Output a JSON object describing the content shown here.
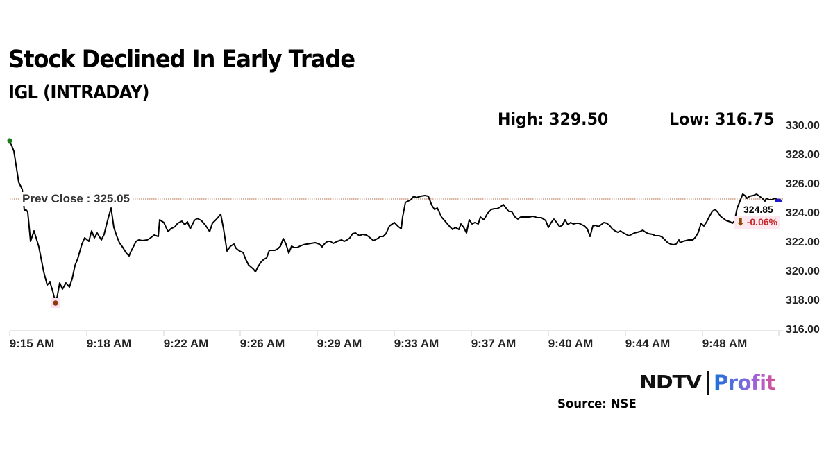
{
  "header": {
    "title": "Stock Declined In Early Trade",
    "subtitle": "IGL (INTRADAY)"
  },
  "stats": {
    "high_label": "High: 329.50",
    "low_label": "Low: 316.75"
  },
  "annotations": {
    "prev_close_label": "Prev Close : 325.05",
    "last_price": "324.85",
    "change_arrow": "⬇",
    "change_pct": "-0.06%"
  },
  "colors": {
    "line": "#000000",
    "prev_close_line": "#c0866a",
    "start_marker": "#1a7a1a",
    "low_marker": "#8b3a0f",
    "end_marker": "#1a1acc",
    "change_negative": "#c62828",
    "badge_bg": "#fde8f0"
  },
  "axes": {
    "y_ticks": [
      "330.00",
      "328.00",
      "326.00",
      "324.00",
      "322.00",
      "320.00",
      "318.00",
      "316.00"
    ],
    "x_ticks": [
      "9:15 AM",
      "9:18 AM",
      "9:22 AM",
      "9:26 AM",
      "9:29 AM",
      "9:33 AM",
      "9:37 AM",
      "9:40 AM",
      "9:44 AM",
      "9:48 AM"
    ]
  },
  "footer": {
    "brand_left": "NDTV",
    "brand_right": "Profit",
    "source": "Source: NSE"
  },
  "chart_data": {
    "type": "line",
    "title": "Stock Declined In Early Trade",
    "subtitle": "IGL (INTRADAY)",
    "xlabel": "",
    "ylabel": "",
    "ylim": [
      316,
      330
    ],
    "y_ticks": [
      316,
      318,
      320,
      322,
      324,
      326,
      328,
      330
    ],
    "x_ticks": [
      "9:15 AM",
      "9:18 AM",
      "9:22 AM",
      "9:26 AM",
      "9:29 AM",
      "9:33 AM",
      "9:37 AM",
      "9:40 AM",
      "9:44 AM",
      "9:48 AM"
    ],
    "grid": false,
    "legend": "none",
    "high": 329.5,
    "low": 316.75,
    "prev_close": 325.05,
    "last": 324.85,
    "change_pct": -0.06,
    "series": [
      {
        "name": "IGL",
        "x": [
          "9:15",
          "9:15",
          "9:16",
          "9:16",
          "9:16",
          "9:16",
          "9:16",
          "9:17",
          "9:17",
          "9:17",
          "9:17",
          "9:17",
          "9:18",
          "9:18",
          "9:18",
          "9:18",
          "9:19",
          "9:19",
          "9:19",
          "9:19",
          "9:19",
          "9:20",
          "9:20",
          "9:20",
          "9:21",
          "9:21",
          "9:22",
          "9:22",
          "9:22",
          "9:23",
          "9:23",
          "9:24",
          "9:24",
          "9:24",
          "9:25",
          "9:25",
          "9:25",
          "9:26",
          "9:26",
          "9:26",
          "9:27",
          "9:27",
          "9:28",
          "9:28",
          "9:28",
          "9:29",
          "9:29",
          "9:30",
          "9:30",
          "9:31",
          "9:31",
          "9:31",
          "9:32",
          "9:32",
          "9:33",
          "9:33",
          "9:33",
          "9:34",
          "9:34",
          "9:35",
          "9:35",
          "9:35",
          "9:36",
          "9:36",
          "9:37",
          "9:37",
          "9:38",
          "9:38",
          "9:38",
          "9:39",
          "9:39",
          "9:40",
          "9:40",
          "9:41",
          "9:41",
          "9:42",
          "9:42",
          "9:43",
          "9:43",
          "9:44",
          "9:44",
          "9:45",
          "9:45",
          "9:46",
          "9:46",
          "9:47",
          "9:47",
          "9:48",
          "9:48",
          "9:49",
          "9:49",
          "9:50",
          "9:50",
          "9:51",
          "9:51"
        ],
        "values": [
          329.0,
          327.5,
          324.5,
          324.3,
          322.0,
          321.9,
          322.8,
          318.8,
          319.1,
          317.7,
          319.4,
          318.9,
          319.4,
          321.0,
          322.3,
          322.6,
          322.2,
          324.3,
          323.0,
          321.9,
          321.2,
          322.2,
          322.2,
          322.5,
          322.6,
          323.5,
          322.7,
          323.2,
          323.4,
          323.3,
          322.9,
          323.6,
          322.9,
          323.9,
          321.4,
          321.9,
          321.7,
          320.6,
          320.0,
          321.5,
          321.6,
          322.1,
          321.4,
          321.8,
          322.0,
          322.0,
          321.8,
          322.0,
          322.2,
          322.7,
          322.6,
          322.3,
          322.8,
          322.5,
          323.4,
          322.7,
          325.3,
          325.6,
          325.4,
          324.3,
          324.0,
          323.0,
          322.8,
          323.2,
          323.4,
          324.0,
          323.8,
          324.6,
          324.2,
          323.7,
          323.6,
          323.7,
          323.6,
          322.9,
          323.8,
          323.2,
          323.7,
          323.3,
          323.3,
          322.5,
          323.2,
          323.3,
          322.5,
          322.7,
          322.4,
          322.8,
          322.2,
          321.9,
          322.2,
          323.6,
          324.2,
          323.6,
          325.3,
          325.5,
          324.85
        ]
      }
    ]
  }
}
